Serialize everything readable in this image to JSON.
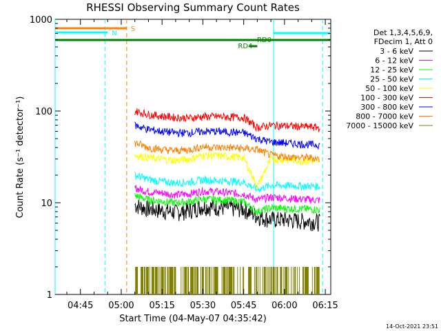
{
  "chart_data": {
    "type": "line",
    "title": "RHESSI Observing Summary Count Rates",
    "xlabel": "Start Time (04-May-07 04:35:42)",
    "ylabel": "Count Rate (s⁻¹ detector⁻¹)",
    "yscale": "log",
    "ylim": [
      1,
      1000
    ],
    "xlim_minutes_clock": [
      "04:35:42",
      "06:17:00"
    ],
    "x_ticks": [
      "04:45",
      "05:00",
      "05:15",
      "05:30",
      "05:45",
      "06:00",
      "06:15"
    ],
    "y_ticks": [
      "1",
      "10",
      "100",
      "1000"
    ],
    "legend_header": [
      "Det 1,3,4,5,6,9,",
      "FDecim 1, Att 0"
    ],
    "legend_position": "right",
    "footer_timestamp": "14-Oct-2021 23:51",
    "series": [
      {
        "name": "3 - 6 keV",
        "color": "#000000",
        "x": [
          "05:05",
          "05:10",
          "05:15",
          "05:20",
          "05:25",
          "05:30",
          "05:35",
          "05:40",
          "05:45",
          "05:50",
          "05:55",
          "06:00",
          "06:05",
          "06:10",
          "06:13"
        ],
        "y": [
          9.5,
          8.6,
          8.3,
          7.9,
          8.3,
          9.2,
          9.0,
          8.8,
          8.6,
          7.2,
          6.6,
          6.6,
          6.4,
          6.3,
          6.2
        ]
      },
      {
        "name": "6 - 12 keV",
        "color": "#ff00ff",
        "x": [
          "05:05",
          "05:10",
          "05:15",
          "05:20",
          "05:25",
          "05:30",
          "05:35",
          "05:40",
          "05:45",
          "05:50",
          "05:55",
          "06:00",
          "06:05",
          "06:10",
          "06:13"
        ],
        "y": [
          14.5,
          13.2,
          12.8,
          12.2,
          12.5,
          13.5,
          13.2,
          12.8,
          12.5,
          10.8,
          11.5,
          11.3,
          11.0,
          10.8,
          10.7
        ]
      },
      {
        "name": "12 - 25 keV",
        "color": "#00ff00",
        "x": [
          "05:05",
          "05:10",
          "05:15",
          "05:20",
          "05:25",
          "05:30",
          "05:35",
          "05:40",
          "05:45",
          "05:50",
          "05:55",
          "06:00",
          "06:05",
          "06:10",
          "06:13"
        ],
        "y": [
          12.0,
          10.8,
          10.4,
          10.0,
          10.3,
          11.0,
          10.8,
          10.6,
          10.2,
          8.0,
          8.8,
          8.7,
          8.6,
          8.5,
          8.4
        ]
      },
      {
        "name": "25 - 50 keV",
        "color": "#00ffff",
        "x": [
          "05:05",
          "05:10",
          "05:15",
          "05:20",
          "05:25",
          "05:30",
          "05:35",
          "05:40",
          "05:45",
          "05:50",
          "05:55",
          "06:00",
          "06:05",
          "06:10",
          "06:13"
        ],
        "y": [
          20.0,
          18.0,
          17.0,
          16.5,
          16.8,
          17.8,
          17.5,
          17.2,
          16.8,
          14.0,
          15.5,
          15.4,
          15.3,
          15.2,
          15.1
        ]
      },
      {
        "name": "50 - 100 keV",
        "color": "#ffff00",
        "x": [
          "05:05",
          "05:10",
          "05:15",
          "05:20",
          "05:25",
          "05:30",
          "05:35",
          "05:40",
          "05:45",
          "05:50",
          "05:55",
          "06:00",
          "06:05",
          "06:10",
          "06:13"
        ],
        "y": [
          33.0,
          31.0,
          30.0,
          29.0,
          30.0,
          33.0,
          32.5,
          32.0,
          31.0,
          15.0,
          30.0,
          29.5,
          29.0,
          28.5,
          28.0
        ]
      },
      {
        "name": "100 - 300 keV",
        "color": "#ff0000",
        "x": [
          "05:05",
          "05:10",
          "05:15",
          "05:20",
          "05:25",
          "05:30",
          "05:35",
          "05:40",
          "05:45",
          "05:50",
          "05:55",
          "06:00",
          "06:05",
          "06:10",
          "06:13"
        ],
        "y": [
          100,
          92,
          88,
          85,
          84,
          87,
          87,
          86,
          85,
          66,
          70,
          69,
          68,
          67,
          66
        ]
      },
      {
        "name": "300 - 800 keV",
        "color": "#0000ff",
        "x": [
          "05:05",
          "05:10",
          "05:15",
          "05:20",
          "05:25",
          "05:30",
          "05:35",
          "05:40",
          "05:45",
          "05:50",
          "05:55",
          "06:00",
          "06:05",
          "06:10",
          "06:13"
        ],
        "y": [
          70,
          63,
          60,
          58,
          58,
          60,
          60,
          59,
          58,
          50,
          46,
          45,
          44,
          43,
          43
        ]
      },
      {
        "name": "800 - 7000 keV",
        "color": "#ff8000",
        "x": [
          "05:05",
          "05:10",
          "05:15",
          "05:20",
          "05:25",
          "05:30",
          "05:35",
          "05:40",
          "05:45",
          "05:50",
          "05:55",
          "06:00",
          "06:05",
          "06:10",
          "06:13"
        ],
        "y": [
          45,
          40,
          38,
          37,
          38,
          41,
          40,
          40,
          39,
          38,
          33,
          32,
          31,
          31,
          30
        ]
      },
      {
        "name": "7000 - 15000 keV",
        "color": "#808000",
        "x": [
          "05:05",
          "05:10",
          "05:15",
          "05:20",
          "05:25",
          "05:30",
          "05:35",
          "05:40",
          "05:45",
          "05:50",
          "05:55",
          "06:00",
          "06:05",
          "06:10",
          "06:13"
        ],
        "y": [
          2,
          2,
          2,
          1,
          2,
          2,
          2,
          2,
          2,
          2,
          2,
          2,
          2,
          1,
          2
        ]
      }
    ],
    "flags": [
      {
        "label": "S",
        "color": "#ff8000",
        "start": "04:35:42",
        "end": "05:02"
      },
      {
        "label": "N",
        "color": "#00ffff",
        "start": "04:35:42",
        "end": "04:55"
      },
      {
        "label": "RD0",
        "color": "#008000",
        "start": "04:35:42",
        "end": "06:17"
      },
      {
        "label": "RD4",
        "color": "#008000",
        "start": "05:47",
        "end": "05:50"
      },
      {
        "label": "",
        "color": "#00ffff",
        "start": "05:56",
        "end": "06:17"
      }
    ],
    "vertical_lines": [
      {
        "time": "04:35:42",
        "color": "#00ffff",
        "style": "solid"
      },
      {
        "time": "04:54",
        "color": "#00ffff",
        "style": "dashed"
      },
      {
        "time": "05:02",
        "color": "#ff8000",
        "style": "dashed"
      },
      {
        "time": "05:56",
        "color": "#00ffff",
        "style": "solid"
      },
      {
        "time": "06:14",
        "color": "#00ffff",
        "style": "dashed"
      }
    ]
  }
}
